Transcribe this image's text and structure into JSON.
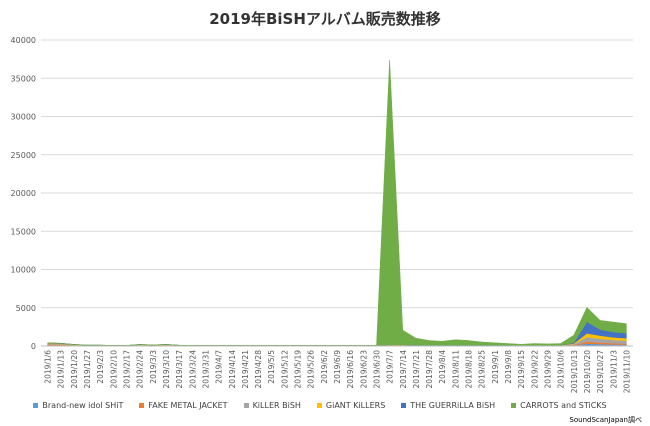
{
  "chart_data": {
    "type": "area",
    "title": "2019年BiSHアルバム販売数推移",
    "source": "SoundScanJapan調べ",
    "ylim": [
      0,
      40000
    ],
    "yticks": [
      0,
      5000,
      10000,
      15000,
      20000,
      25000,
      30000,
      35000,
      40000
    ],
    "grid": true,
    "legend_position": "bottom",
    "stacked": true,
    "x": [
      "2019/1/6",
      "2019/1/13",
      "2019/1/20",
      "2019/1/27",
      "2019/2/3",
      "2019/2/10",
      "2019/2/17",
      "2019/2/24",
      "2019/3/3",
      "2019/3/10",
      "2019/3/17",
      "2019/3/24",
      "2019/3/31",
      "2019/4/7",
      "2019/4/14",
      "2019/4/21",
      "2019/4/28",
      "2019/5/5",
      "2019/5/12",
      "2019/5/19",
      "2019/5/26",
      "2019/6/2",
      "2019/6/9",
      "2019/6/16",
      "2019/6/23",
      "2019/6/30",
      "2019/7/7",
      "2019/7/14",
      "2019/7/21",
      "2019/7/28",
      "2019/8/4",
      "2019/8/11",
      "2019/8/18",
      "2019/8/25",
      "2019/9/1",
      "2019/9/8",
      "2019/9/15",
      "2019/9/22",
      "2019/9/29",
      "2019/10/6",
      "2019/10/13",
      "2019/10/20",
      "2019/10/27",
      "2019/11/3",
      "2019/11/10"
    ],
    "series": [
      {
        "name": "Brand-new idol SHiT",
        "color": "#5B9BD5",
        "values": [
          120,
          100,
          60,
          30,
          30,
          20,
          20,
          60,
          40,
          60,
          30,
          20,
          20,
          20,
          20,
          20,
          20,
          20,
          20,
          20,
          20,
          20,
          20,
          20,
          20,
          20,
          40,
          40,
          30,
          30,
          30,
          30,
          30,
          30,
          30,
          30,
          20,
          20,
          20,
          30,
          80,
          300,
          250,
          200,
          180
        ]
      },
      {
        "name": "FAKE METAL JACKET",
        "color": "#ED7D31",
        "values": [
          80,
          70,
          40,
          20,
          20,
          15,
          15,
          40,
          30,
          40,
          20,
          15,
          15,
          15,
          15,
          15,
          15,
          15,
          15,
          15,
          15,
          15,
          15,
          15,
          15,
          15,
          30,
          30,
          20,
          20,
          20,
          20,
          20,
          20,
          20,
          20,
          15,
          15,
          15,
          20,
          60,
          250,
          200,
          160,
          140
        ]
      },
      {
        "name": "KiLLER BiSH",
        "color": "#A5A5A5",
        "values": [
          100,
          90,
          50,
          30,
          30,
          20,
          20,
          50,
          30,
          50,
          25,
          20,
          20,
          20,
          20,
          20,
          20,
          20,
          20,
          20,
          20,
          20,
          20,
          20,
          20,
          20,
          40,
          40,
          30,
          30,
          30,
          30,
          30,
          30,
          30,
          30,
          20,
          20,
          20,
          30,
          100,
          600,
          500,
          420,
          380
        ]
      },
      {
        "name": "GiANT KiLLERS",
        "color": "#FFC000",
        "values": [
          60,
          50,
          30,
          20,
          20,
          10,
          10,
          30,
          20,
          30,
          15,
          10,
          10,
          10,
          10,
          10,
          10,
          10,
          10,
          10,
          10,
          10,
          10,
          10,
          10,
          10,
          30,
          30,
          20,
          20,
          20,
          20,
          20,
          20,
          20,
          20,
          10,
          10,
          10,
          20,
          80,
          500,
          400,
          350,
          320
        ]
      },
      {
        "name": "THE GUERRiLLA BiSH",
        "color": "#4472C4",
        "values": [
          60,
          50,
          30,
          20,
          20,
          10,
          10,
          30,
          20,
          30,
          15,
          10,
          10,
          10,
          10,
          10,
          10,
          10,
          10,
          10,
          10,
          10,
          10,
          10,
          10,
          10,
          30,
          30,
          20,
          20,
          20,
          20,
          20,
          20,
          20,
          20,
          10,
          10,
          10,
          20,
          100,
          1500,
          800,
          700,
          650
        ]
      },
      {
        "name": "CARROTS and STiCKS",
        "color": "#70AD47",
        "values": [
          0,
          0,
          0,
          0,
          0,
          0,
          0,
          0,
          0,
          0,
          0,
          0,
          0,
          0,
          0,
          0,
          0,
          0,
          0,
          0,
          0,
          0,
          0,
          0,
          0,
          0,
          37200,
          1900,
          900,
          600,
          500,
          700,
          600,
          400,
          300,
          200,
          150,
          250,
          200,
          200,
          1000,
          1900,
          1200,
          1300,
          1250
        ]
      }
    ]
  }
}
